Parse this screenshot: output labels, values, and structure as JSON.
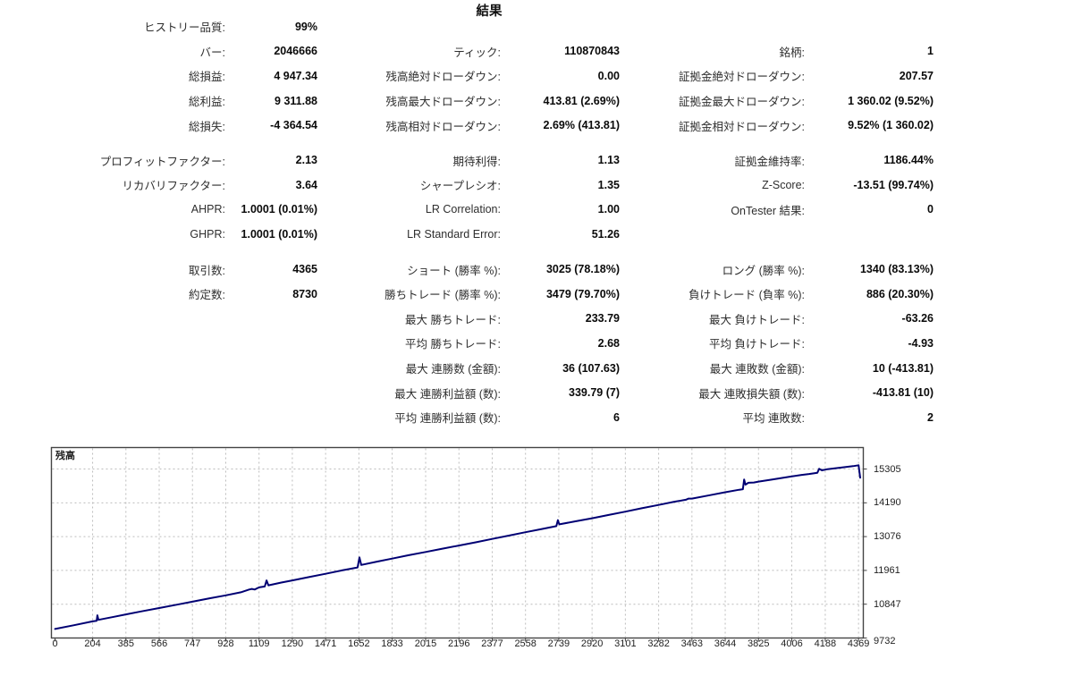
{
  "title": "結果",
  "stats": {
    "sections": [
      {
        "rows": [
          [
            {
              "label": "ヒストリー品質:",
              "value": "99%"
            },
            null,
            null
          ],
          [
            {
              "label": "バー:",
              "value": "2046666"
            },
            {
              "label": "ティック:",
              "value": "110870843"
            },
            {
              "label": "銘柄:",
              "value": "1"
            }
          ],
          [
            {
              "label": "総損益:",
              "value": "4 947.34"
            },
            {
              "label": "残高絶対ドローダウン:",
              "value": "0.00"
            },
            {
              "label": "証拠金絶対ドローダウン:",
              "value": "207.57"
            }
          ],
          [
            {
              "label": "総利益:",
              "value": "9 311.88"
            },
            {
              "label": "残高最大ドローダウン:",
              "value": "413.81 (2.69%)"
            },
            {
              "label": "証拠金最大ドローダウン:",
              "value": "1 360.02 (9.52%)"
            }
          ],
          [
            {
              "label": "総損失:",
              "value": "-4 364.54"
            },
            {
              "label": "残高相対ドローダウン:",
              "value": "2.69% (413.81)"
            },
            {
              "label": "証拠金相対ドローダウン:",
              "value": "9.52% (1 360.02)"
            }
          ]
        ]
      },
      {
        "rows": [
          [
            {
              "label": "プロフィットファクター:",
              "value": "2.13"
            },
            {
              "label": "期待利得:",
              "value": "1.13"
            },
            {
              "label": "証拠金維持率:",
              "value": "1186.44%"
            }
          ],
          [
            {
              "label": "リカバリファクター:",
              "value": "3.64"
            },
            {
              "label": "シャープレシオ:",
              "value": "1.35"
            },
            {
              "label": "Z-Score:",
              "value": "-13.51 (99.74%)"
            }
          ],
          [
            {
              "label": "AHPR:",
              "value": "1.0001 (0.01%)"
            },
            {
              "label": "LR Correlation:",
              "value": "1.00"
            },
            {
              "label": "OnTester 結果:",
              "value": "0"
            }
          ],
          [
            {
              "label": "GHPR:",
              "value": "1.0001 (0.01%)"
            },
            {
              "label": "LR Standard Error:",
              "value": "51.26"
            },
            null
          ]
        ]
      },
      {
        "rows": [
          [
            {
              "label": "取引数:",
              "value": "4365"
            },
            {
              "label": "ショート (勝率 %):",
              "value": "3025 (78.18%)"
            },
            {
              "label": "ロング (勝率 %):",
              "value": "1340 (83.13%)"
            }
          ],
          [
            {
              "label": "約定数:",
              "value": "8730"
            },
            {
              "label": "勝ちトレード (勝率 %):",
              "value": "3479 (79.70%)"
            },
            {
              "label": "負けトレード (負率 %):",
              "value": "886 (20.30%)"
            }
          ],
          [
            null,
            {
              "label": "最大 勝ちトレード:",
              "value": "233.79"
            },
            {
              "label": "最大 負けトレード:",
              "value": "-63.26"
            }
          ],
          [
            null,
            {
              "label": "平均 勝ちトレード:",
              "value": "2.68"
            },
            {
              "label": "平均 負けトレード:",
              "value": "-4.93"
            }
          ],
          [
            null,
            {
              "label": "最大 連勝数 (金額):",
              "value": "36 (107.63)"
            },
            {
              "label": "最大 連敗数 (金額):",
              "value": "10 (-413.81)"
            }
          ],
          [
            null,
            {
              "label": "最大 連勝利益額 (数):",
              "value": "339.79 (7)"
            },
            {
              "label": "最大 連敗損失額 (数):",
              "value": "-413.81 (10)"
            }
          ],
          [
            null,
            {
              "label": "平均 連勝利益額 (数):",
              "value": "6"
            },
            {
              "label": "平均 連敗数:",
              "value": "2"
            }
          ]
        ]
      }
    ]
  },
  "chart_data": {
    "type": "line",
    "title": "残高",
    "series_name": "Balance",
    "line_color": "#000073",
    "grid_color": "#bcbcbc",
    "border_color": "#444444",
    "x_ticks": [
      0,
      204,
      385,
      566,
      747,
      928,
      1109,
      1290,
      1471,
      1652,
      1833,
      2015,
      2196,
      2377,
      2558,
      2739,
      2920,
      3101,
      3282,
      3463,
      3644,
      3825,
      4006,
      4188,
      4369
    ],
    "y_ticks": [
      15305,
      14190,
      13076,
      11961,
      10847,
      9732
    ],
    "xlim": [
      -20,
      4395
    ],
    "ylim": [
      9732,
      16013
    ],
    "grid": true,
    "legend_position": "none",
    "points": [
      [
        0,
        10030
      ],
      [
        100,
        10150
      ],
      [
        204,
        10280
      ],
      [
        226,
        10300
      ],
      [
        230,
        10480
      ],
      [
        236,
        10330
      ],
      [
        320,
        10430
      ],
      [
        385,
        10510
      ],
      [
        470,
        10610
      ],
      [
        566,
        10720
      ],
      [
        660,
        10830
      ],
      [
        747,
        10930
      ],
      [
        840,
        11040
      ],
      [
        928,
        11140
      ],
      [
        1010,
        11240
      ],
      [
        1055,
        11330
      ],
      [
        1070,
        11350
      ],
      [
        1085,
        11330
      ],
      [
        1109,
        11400
      ],
      [
        1140,
        11430
      ],
      [
        1150,
        11630
      ],
      [
        1160,
        11470
      ],
      [
        1230,
        11560
      ],
      [
        1290,
        11630
      ],
      [
        1380,
        11740
      ],
      [
        1471,
        11850
      ],
      [
        1560,
        11960
      ],
      [
        1645,
        12060
      ],
      [
        1655,
        12390
      ],
      [
        1665,
        12140
      ],
      [
        1750,
        12250
      ],
      [
        1833,
        12350
      ],
      [
        1920,
        12460
      ],
      [
        2015,
        12570
      ],
      [
        2100,
        12670
      ],
      [
        2196,
        12780
      ],
      [
        2290,
        12890
      ],
      [
        2377,
        13000
      ],
      [
        2470,
        13110
      ],
      [
        2558,
        13220
      ],
      [
        2650,
        13330
      ],
      [
        2726,
        13420
      ],
      [
        2734,
        13620
      ],
      [
        2742,
        13480
      ],
      [
        2830,
        13580
      ],
      [
        2920,
        13680
      ],
      [
        3010,
        13790
      ],
      [
        3101,
        13900
      ],
      [
        3190,
        14010
      ],
      [
        3282,
        14120
      ],
      [
        3370,
        14230
      ],
      [
        3430,
        14290
      ],
      [
        3445,
        14330
      ],
      [
        3463,
        14330
      ],
      [
        3560,
        14440
      ],
      [
        3644,
        14540
      ],
      [
        3720,
        14620
      ],
      [
        3740,
        14640
      ],
      [
        3747,
        14960
      ],
      [
        3754,
        14790
      ],
      [
        3770,
        14850
      ],
      [
        3800,
        14860
      ],
      [
        3825,
        14890
      ],
      [
        3900,
        14960
      ],
      [
        4006,
        15060
      ],
      [
        4060,
        15110
      ],
      [
        4100,
        15140
      ],
      [
        4145,
        15180
      ],
      [
        4155,
        15310
      ],
      [
        4170,
        15260
      ],
      [
        4200,
        15300
      ],
      [
        4240,
        15330
      ],
      [
        4300,
        15370
      ],
      [
        4340,
        15400
      ],
      [
        4369,
        15430
      ],
      [
        4378,
        15020
      ]
    ]
  }
}
